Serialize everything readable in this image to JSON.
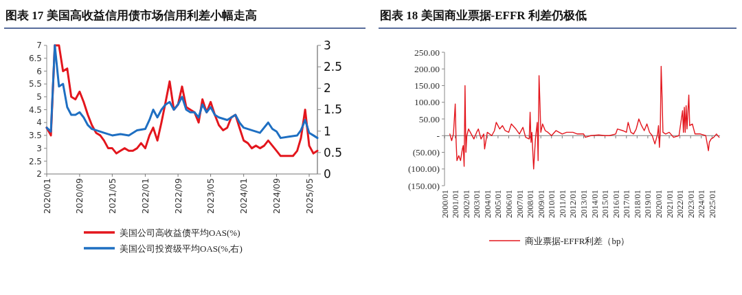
{
  "chart_data": [
    {
      "type": "line",
      "title": "图表 17 美国高收益信用债市场信用利差小幅走高",
      "legend": "bottom",
      "xlim": [
        "2020-01",
        "2025-07"
      ],
      "xticks": [
        {
          "value": "2020-01",
          "label": "2020/01"
        },
        {
          "value": "2020-09",
          "label": "2020/09"
        },
        {
          "value": "2021-05",
          "label": "2021/05"
        },
        {
          "value": "2022-01",
          "label": "2022/01"
        },
        {
          "value": "2022-09",
          "label": "2022/09"
        },
        {
          "value": "2023-05",
          "label": "2023/05"
        },
        {
          "value": "2024-01",
          "label": "2024/01"
        },
        {
          "value": "2024-09",
          "label": "2024/09"
        },
        {
          "value": "2025-05",
          "label": "2025/05"
        }
      ],
      "ylim": [
        2,
        7
      ],
      "yticks": [
        2,
        2.5,
        3,
        3.5,
        4,
        4.5,
        5,
        5.5,
        6,
        6.5,
        7
      ],
      "y2lim": [
        0,
        3
      ],
      "y2ticks": [
        0,
        0.5,
        1,
        1.5,
        2,
        2.5,
        3
      ],
      "series": [
        {
          "name": "美国公司高收益债平均OAS(%)",
          "color": "#e3161d",
          "x": [
            "2020-01",
            "2020-02",
            "2020-03",
            "2020-04",
            "2020-05",
            "2020-06",
            "2020-07",
            "2020-08",
            "2020-09",
            "2020-10",
            "2020-11",
            "2020-12",
            "2021-01",
            "2021-02",
            "2021-03",
            "2021-04",
            "2021-05",
            "2021-06",
            "2021-07",
            "2021-08",
            "2021-09",
            "2021-10",
            "2021-11",
            "2021-12",
            "2022-01",
            "2022-02",
            "2022-03",
            "2022-04",
            "2022-05",
            "2022-06",
            "2022-07",
            "2022-08",
            "2022-09",
            "2022-10",
            "2022-11",
            "2022-12",
            "2023-01",
            "2023-02",
            "2023-03",
            "2023-04",
            "2023-05",
            "2023-06",
            "2023-07",
            "2023-08",
            "2023-09",
            "2023-10",
            "2023-11",
            "2023-12",
            "2024-01",
            "2024-02",
            "2024-03",
            "2024-04",
            "2024-05",
            "2024-06",
            "2024-07",
            "2024-08",
            "2024-09",
            "2024-10",
            "2024-11",
            "2024-12",
            "2025-01",
            "2025-02",
            "2025-03",
            "2025-04",
            "2025-05",
            "2025-06",
            "2025-07"
          ],
          "values": [
            3.8,
            3.5,
            7,
            7,
            6.0,
            6.1,
            5.0,
            4.9,
            5.2,
            4.8,
            4.3,
            3.9,
            3.6,
            3.5,
            3.3,
            3.0,
            3.0,
            2.8,
            2.9,
            3.0,
            2.9,
            2.9,
            3.0,
            3.2,
            3.0,
            3.5,
            3.8,
            3.3,
            4.0,
            4.8,
            5.6,
            4.5,
            4.7,
            5.4,
            4.6,
            4.5,
            4.4,
            4.0,
            4.9,
            4.4,
            4.8,
            4.3,
            3.9,
            3.7,
            3.8,
            4.2,
            4.3,
            3.8,
            3.3,
            3.2,
            3.0,
            3.1,
            3.0,
            3.1,
            3.3,
            3.1,
            2.9,
            2.7,
            2.7,
            2.7,
            2.7,
            2.9,
            3.4,
            4.5,
            3.1,
            2.8,
            2.9
          ]
        },
        {
          "name": "美国公司投资级平均OAS(%,右)",
          "color": "#1e6fc2",
          "axis": "y2",
          "x": [
            "2020-01",
            "2020-02",
            "2020-03",
            "2020-04",
            "2020-05",
            "2020-06",
            "2020-07",
            "2020-08",
            "2020-09",
            "2020-10",
            "2020-11",
            "2020-12",
            "2021-01",
            "2021-03",
            "2021-05",
            "2021-07",
            "2021-09",
            "2021-11",
            "2022-01",
            "2022-02",
            "2022-03",
            "2022-04",
            "2022-05",
            "2022-06",
            "2022-07",
            "2022-08",
            "2022-09",
            "2022-10",
            "2022-11",
            "2022-12",
            "2023-01",
            "2023-02",
            "2023-03",
            "2023-04",
            "2023-05",
            "2023-06",
            "2023-07",
            "2023-09",
            "2023-11",
            "2023-12",
            "2024-01",
            "2024-03",
            "2024-05",
            "2024-07",
            "2024-08",
            "2024-09",
            "2024-10",
            "2024-12",
            "2025-02",
            "2025-03",
            "2025-04",
            "2025-05",
            "2025-06",
            "2025-07"
          ],
          "values": [
            1.08,
            0.99,
            3.0,
            2.04,
            2.1,
            1.56,
            1.38,
            1.38,
            1.44,
            1.32,
            1.14,
            1.05,
            1.02,
            0.96,
            0.9,
            0.93,
            0.9,
            1.02,
            1.05,
            1.26,
            1.5,
            1.32,
            1.5,
            1.62,
            1.68,
            1.5,
            1.62,
            1.8,
            1.5,
            1.44,
            1.44,
            1.32,
            1.62,
            1.44,
            1.56,
            1.38,
            1.32,
            1.26,
            1.38,
            1.2,
            1.08,
            1.02,
            0.96,
            1.2,
            1.05,
            0.99,
            0.84,
            0.87,
            0.9,
            1.02,
            1.26,
            0.96,
            0.9,
            0.84
          ]
        }
      ]
    },
    {
      "type": "line",
      "title": "图表 18 美国商业票据-EFFR 利差仍极低",
      "legend": "bottom",
      "xlim": [
        "2000-01",
        "2025-10"
      ],
      "xticks": [
        {
          "value": "2000-01",
          "label": "2000/01"
        },
        {
          "value": "2001-01",
          "label": "2001/01"
        },
        {
          "value": "2002-01",
          "label": "2002/01"
        },
        {
          "value": "2003-01",
          "label": "2003/01"
        },
        {
          "value": "2004-01",
          "label": "2004/01"
        },
        {
          "value": "2005-01",
          "label": "2005/01"
        },
        {
          "value": "2006-01",
          "label": "2006/01"
        },
        {
          "value": "2007-01",
          "label": "2007/01"
        },
        {
          "value": "2008-01",
          "label": "2008/01"
        },
        {
          "value": "2009-01",
          "label": "2009/01"
        },
        {
          "value": "2010-01",
          "label": "2010/01"
        },
        {
          "value": "2011-01",
          "label": "2011/01"
        },
        {
          "value": "2012-01",
          "label": "2012/01"
        },
        {
          "value": "2013-01",
          "label": "2013/01"
        },
        {
          "value": "2014-01",
          "label": "2014/01"
        },
        {
          "value": "2015-01",
          "label": "2015/01"
        },
        {
          "value": "2016-01",
          "label": "2016/01"
        },
        {
          "value": "2017-01",
          "label": "2017/01"
        },
        {
          "value": "2018-01",
          "label": "2018/01"
        },
        {
          "value": "2019-01",
          "label": "2019/01"
        },
        {
          "value": "2020-01",
          "label": "2020/01"
        },
        {
          "value": "2021-01",
          "label": "2021/01"
        },
        {
          "value": "2022-01",
          "label": "2022/01"
        },
        {
          "value": "2023-01",
          "label": "2023/01"
        },
        {
          "value": "2024-01",
          "label": "2024/01"
        },
        {
          "value": "2025-01",
          "label": "2025/01"
        }
      ],
      "ylim": [
        -150,
        250
      ],
      "yticks": [
        {
          "value": 250,
          "label": "250.00"
        },
        {
          "value": 200,
          "label": "200.00"
        },
        {
          "value": 150,
          "label": "150.00"
        },
        {
          "value": 100,
          "label": "100.00"
        },
        {
          "value": 50,
          "label": "50.00"
        },
        {
          "value": 0,
          "label": "-"
        },
        {
          "value": -50,
          "label": "(50.00)"
        },
        {
          "value": -100,
          "label": "(100.00)"
        },
        {
          "value": -150,
          "label": "(150.00)"
        }
      ],
      "series": [
        {
          "name": "商业票据-EFFR利差（bp）",
          "color": "#e3161d",
          "x": [
            "2000-07",
            "2000-09",
            "2000-11",
            "2001-01",
            "2001-02",
            "2001-03",
            "2001-05",
            "2001-07",
            "2001-09",
            "2001-10",
            "2001-11",
            "2001-12",
            "2002-01",
            "2002-02",
            "2002-04",
            "2002-07",
            "2002-10",
            "2003-01",
            "2003-03",
            "2003-06",
            "2003-09",
            "2003-10",
            "2004-01",
            "2004-06",
            "2004-09",
            "2004-11",
            "2005-03",
            "2005-06",
            "2005-09",
            "2006-01",
            "2006-04",
            "2006-09",
            "2007-01",
            "2007-05",
            "2007-08",
            "2007-12",
            "2008-01",
            "2008-02",
            "2008-03",
            "2008-05",
            "2008-07",
            "2008-09",
            "2008-10",
            "2008-11",
            "2008-12",
            "2009-01",
            "2009-03",
            "2009-06",
            "2009-09",
            "2010-01",
            "2010-06",
            "2011-01",
            "2011-06",
            "2012-01",
            "2012-06",
            "2013-01",
            "2013-03",
            "2013-09",
            "2014-06",
            "2015-01",
            "2015-06",
            "2016-01",
            "2016-03",
            "2016-09",
            "2017-01",
            "2017-03",
            "2017-06",
            "2017-09",
            "2017-12",
            "2018-03",
            "2018-06",
            "2018-09",
            "2018-12",
            "2019-03",
            "2019-06",
            "2019-09",
            "2019-12",
            "2020-01",
            "2020-02",
            "2020-03",
            "2020-04",
            "2020-05",
            "2020-06",
            "2020-09",
            "2021-01",
            "2021-06",
            "2021-12",
            "2022-04",
            "2022-05",
            "2022-06",
            "2022-07",
            "2022-08",
            "2022-09",
            "2022-11",
            "2022-12",
            "2023-03",
            "2023-06",
            "2023-12",
            "2024-06",
            "2024-09",
            "2024-10",
            "2024-12",
            "2025-03",
            "2025-06",
            "2025-09"
          ],
          "values": [
            5,
            -15,
            5,
            95,
            -20,
            -75,
            -60,
            -75,
            -40,
            -30,
            -92,
            150,
            -50,
            0,
            20,
            5,
            -10,
            10,
            20,
            -10,
            5,
            -40,
            10,
            0,
            15,
            40,
            20,
            30,
            15,
            10,
            35,
            20,
            5,
            25,
            -5,
            -10,
            70,
            -20,
            10,
            -100,
            -10,
            40,
            -75,
            180,
            100,
            10,
            35,
            15,
            10,
            0,
            15,
            5,
            10,
            10,
            5,
            5,
            -5,
            0,
            2,
            0,
            0,
            5,
            20,
            15,
            10,
            40,
            10,
            5,
            20,
            50,
            30,
            15,
            35,
            10,
            0,
            -25,
            5,
            30,
            -35,
            10,
            208,
            120,
            10,
            5,
            10,
            -5,
            0,
            75,
            10,
            85,
            10,
            90,
            20,
            122,
            30,
            35,
            5,
            5,
            0,
            -45,
            -20,
            -10,
            -5,
            5,
            -5
          ]
        }
      ]
    }
  ]
}
